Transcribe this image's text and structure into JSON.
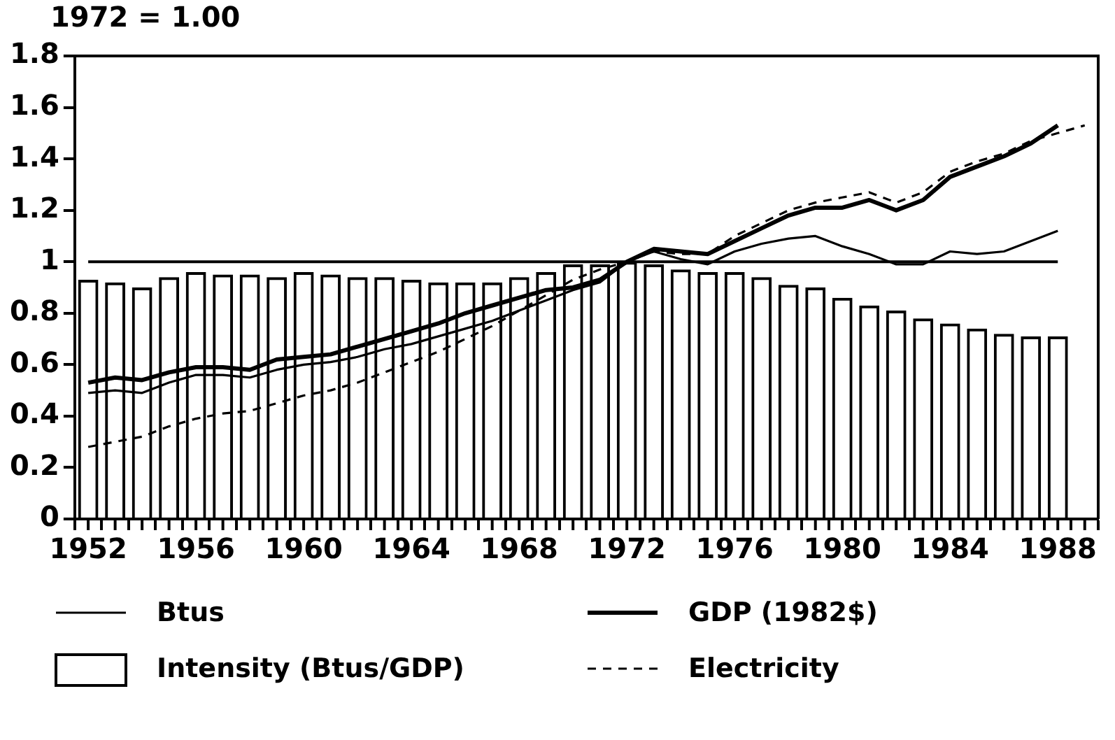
{
  "chart_data": {
    "type": "bar",
    "ylabel": "1972 = 1.00",
    "x": [
      1952,
      1953,
      1954,
      1955,
      1956,
      1957,
      1958,
      1959,
      1960,
      1961,
      1962,
      1963,
      1964,
      1965,
      1966,
      1967,
      1968,
      1969,
      1970,
      1971,
      1972,
      1973,
      1974,
      1975,
      1976,
      1977,
      1978,
      1979,
      1980,
      1981,
      1982,
      1983,
      1984,
      1985,
      1986,
      1987,
      1988
    ],
    "series": [
      {
        "name": "Btus",
        "type": "line",
        "color": "#000000",
        "line_style": "solid",
        "values": [
          0.49,
          0.5,
          0.49,
          0.53,
          0.56,
          0.56,
          0.55,
          0.58,
          0.6,
          0.61,
          0.63,
          0.66,
          0.68,
          0.71,
          0.74,
          0.77,
          0.81,
          0.85,
          0.89,
          0.92,
          1.0,
          1.04,
          1.01,
          0.99,
          1.04,
          1.07,
          1.09,
          1.1,
          1.06,
          1.03,
          0.99,
          0.99,
          1.04,
          1.03,
          1.04,
          1.08,
          1.12
        ]
      },
      {
        "name": "GDP (1982$)",
        "type": "line",
        "color": "#000000",
        "line_style": "solid",
        "values": [
          0.53,
          0.55,
          0.54,
          0.57,
          0.59,
          0.59,
          0.58,
          0.62,
          0.63,
          0.64,
          0.67,
          0.7,
          0.73,
          0.76,
          0.8,
          0.83,
          0.86,
          0.89,
          0.9,
          0.93,
          1.0,
          1.05,
          1.04,
          1.03,
          1.08,
          1.13,
          1.18,
          1.21,
          1.21,
          1.24,
          1.2,
          1.24,
          1.33,
          1.37,
          1.41,
          1.46,
          1.53
        ]
      },
      {
        "name": "Intensity (Btus/GDP)",
        "color": "#000000",
        "values": [
          0.93,
          0.92,
          0.9,
          0.94,
          0.96,
          0.95,
          0.95,
          0.94,
          0.96,
          0.95,
          0.94,
          0.94,
          0.93,
          0.92,
          0.92,
          0.92,
          0.94,
          0.96,
          0.99,
          0.99,
          1.0,
          0.99,
          0.97,
          0.96,
          0.96,
          0.94,
          0.91,
          0.9,
          0.86,
          0.83,
          0.81,
          0.78,
          0.76,
          0.74,
          0.72,
          0.71,
          0.71
        ]
      },
      {
        "name": "Electricity",
        "type": "line",
        "color": "#000000",
        "line_style": "dashed",
        "x": [
          1952,
          1953,
          1954,
          1955,
          1956,
          1957,
          1958,
          1959,
          1960,
          1961,
          1962,
          1963,
          1964,
          1965,
          1966,
          1967,
          1968,
          1969,
          1970,
          1971,
          1972,
          1973,
          1974,
          1975,
          1976,
          1977,
          1978,
          1979,
          1980,
          1981,
          1982,
          1983,
          1984,
          1985,
          1986,
          1987,
          1988,
          1989
        ],
        "values": [
          0.28,
          0.3,
          0.32,
          0.36,
          0.39,
          0.41,
          0.42,
          0.45,
          0.48,
          0.5,
          0.53,
          0.57,
          0.61,
          0.65,
          0.7,
          0.75,
          0.81,
          0.87,
          0.93,
          0.97,
          1.0,
          1.04,
          1.03,
          1.03,
          1.1,
          1.15,
          1.2,
          1.23,
          1.25,
          1.27,
          1.23,
          1.27,
          1.35,
          1.39,
          1.42,
          1.47,
          1.5,
          1.53
        ]
      }
    ],
    "ref_lines": [
      {
        "axis": "y",
        "value": 1,
        "color": "#000000"
      }
    ],
    "xlim": [
      1951.5,
      1989.5
    ],
    "xticks": [
      1952,
      {
        "value": 1953,
        "label": null
      },
      {
        "value": 1954,
        "label": null
      },
      {
        "value": 1955,
        "label": null
      },
      1956,
      {
        "value": 1957,
        "label": null
      },
      {
        "value": 1958,
        "label": null
      },
      {
        "value": 1959,
        "label": null
      },
      1960,
      {
        "value": 1961,
        "label": null
      },
      {
        "value": 1962,
        "label": null
      },
      {
        "value": 1963,
        "label": null
      },
      1964,
      {
        "value": 1965,
        "label": null
      },
      {
        "value": 1966,
        "label": null
      },
      {
        "value": 1967,
        "label": null
      },
      1968,
      {
        "value": 1969,
        "label": null
      },
      {
        "value": 1970,
        "label": null
      },
      {
        "value": 1971,
        "label": null
      },
      1972,
      {
        "value": 1973,
        "label": null
      },
      {
        "value": 1974,
        "label": null
      },
      {
        "value": 1975,
        "label": null
      },
      1976,
      {
        "value": 1977,
        "label": null
      },
      {
        "value": 1978,
        "label": null
      },
      {
        "value": 1979,
        "label": null
      },
      1980,
      {
        "value": 1981,
        "label": null
      },
      {
        "value": 1982,
        "label": null
      },
      {
        "value": 1983,
        "label": null
      },
      1984,
      {
        "value": 1985,
        "label": null
      },
      {
        "value": 1986,
        "label": null
      },
      {
        "value": 1987,
        "label": null
      },
      1988,
      {
        "value": 1989,
        "label": null
      }
    ],
    "ylim": [
      0,
      1.8
    ],
    "yticks": [
      0,
      0.2,
      0.4,
      0.6,
      0.8,
      1,
      1.2,
      1.4,
      1.6,
      1.8
    ],
    "grid": false,
    "legend": "bottom left"
  }
}
